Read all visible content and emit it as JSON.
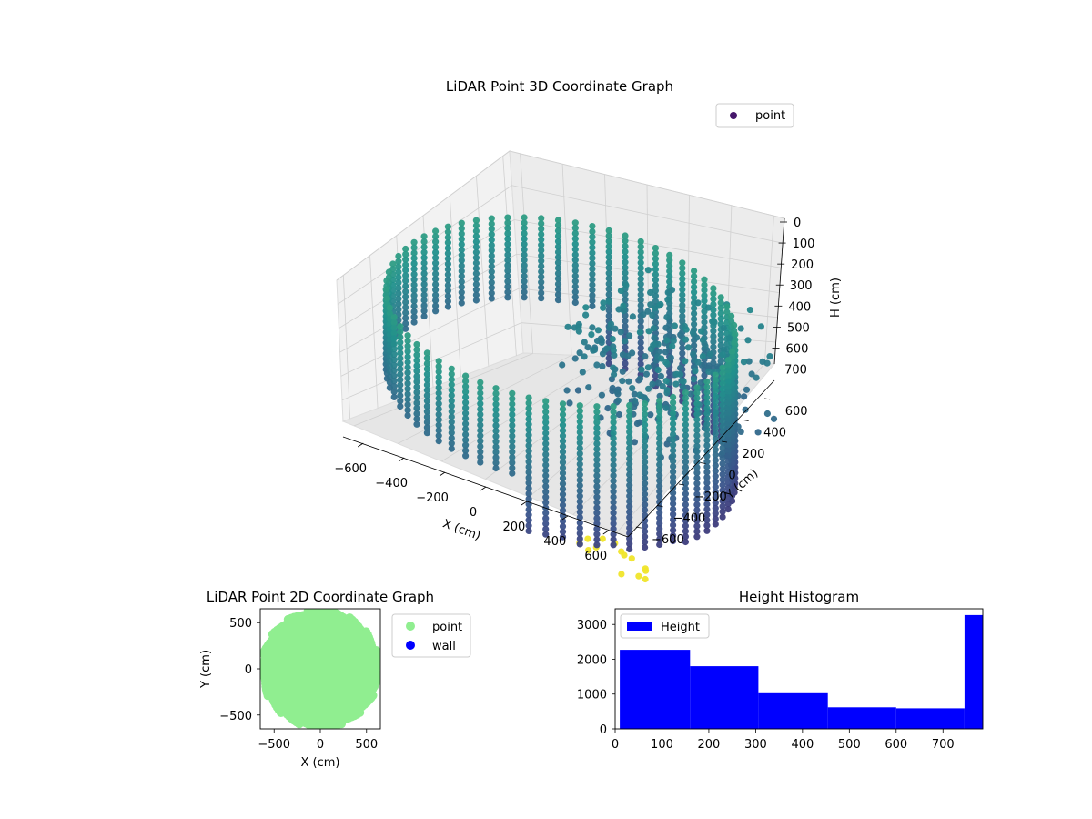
{
  "chart_data": [
    {
      "type": "scatter",
      "title": "LiDAR Point 3D Coordinate Graph",
      "xlabel": "X (cm)",
      "ylabel": "Y (cm)",
      "zlabel": "H (cm)",
      "x_ticks": [
        "−600",
        "−400",
        "−200",
        "0",
        "200",
        "400",
        "600"
      ],
      "y_ticks": [
        "−600",
        "−400",
        "−200",
        "0",
        "200",
        "400",
        "600"
      ],
      "z_ticks": [
        "0",
        "100",
        "200",
        "300",
        "400",
        "500",
        "600",
        "700"
      ],
      "xlim": [
        -650,
        650
      ],
      "ylim": [
        -650,
        650
      ],
      "zlim": [
        0,
        780
      ],
      "z_inverted": true,
      "grid": true,
      "legend": {
        "position": "upper-right",
        "entries": [
          {
            "label": "point",
            "color": "#46166b"
          }
        ]
      },
      "colormap": "viridis",
      "structure": {
        "ring_radius_cm": 600,
        "ring_height_range_cm": [
          0,
          550
        ],
        "inner_cluster_x_range_cm": [
          -50,
          500
        ],
        "inner_cluster_y_range_cm": [
          0,
          600
        ]
      }
    },
    {
      "type": "scatter",
      "title": "LiDAR Point 2D Coordinate Graph",
      "xlabel": "X (cm)",
      "ylabel": "Y (cm)",
      "x_ticks": [
        "−500",
        "0",
        "500"
      ],
      "y_ticks": [
        "−500",
        "0",
        "500"
      ],
      "xlim": [
        -650,
        650
      ],
      "ylim": [
        -650,
        650
      ],
      "legend": {
        "position": "outside-right",
        "entries": [
          {
            "label": "point",
            "color": "#90ee90"
          },
          {
            "label": "wall",
            "color": "#0000ff"
          }
        ]
      },
      "series": [
        {
          "name": "point",
          "color": "#90ee90",
          "shape": "disk",
          "radius_cm": 620
        },
        {
          "name": "wall",
          "color": "#0000ff",
          "values": []
        }
      ]
    },
    {
      "type": "bar",
      "title": "Height Histogram",
      "legend": {
        "position": "upper-left",
        "entries": [
          {
            "label": "Height",
            "color": "#0000ff"
          }
        ]
      },
      "x_ticks": [
        "0",
        "100",
        "200",
        "300",
        "400",
        "500",
        "600",
        "700"
      ],
      "y_ticks": [
        "0",
        "1000",
        "2000",
        "3000"
      ],
      "xlim": [
        0,
        785
      ],
      "ylim": [
        0,
        3450
      ],
      "bins": [
        {
          "start": 10,
          "end": 160,
          "value": 2270
        },
        {
          "start": 160,
          "end": 306,
          "value": 1800
        },
        {
          "start": 306,
          "end": 454,
          "value": 1050
        },
        {
          "start": 454,
          "end": 600,
          "value": 620
        },
        {
          "start": 600,
          "end": 746,
          "value": 590
        },
        {
          "start": 746,
          "end": 785,
          "value": 3270
        }
      ],
      "color": "#0000ff"
    }
  ]
}
